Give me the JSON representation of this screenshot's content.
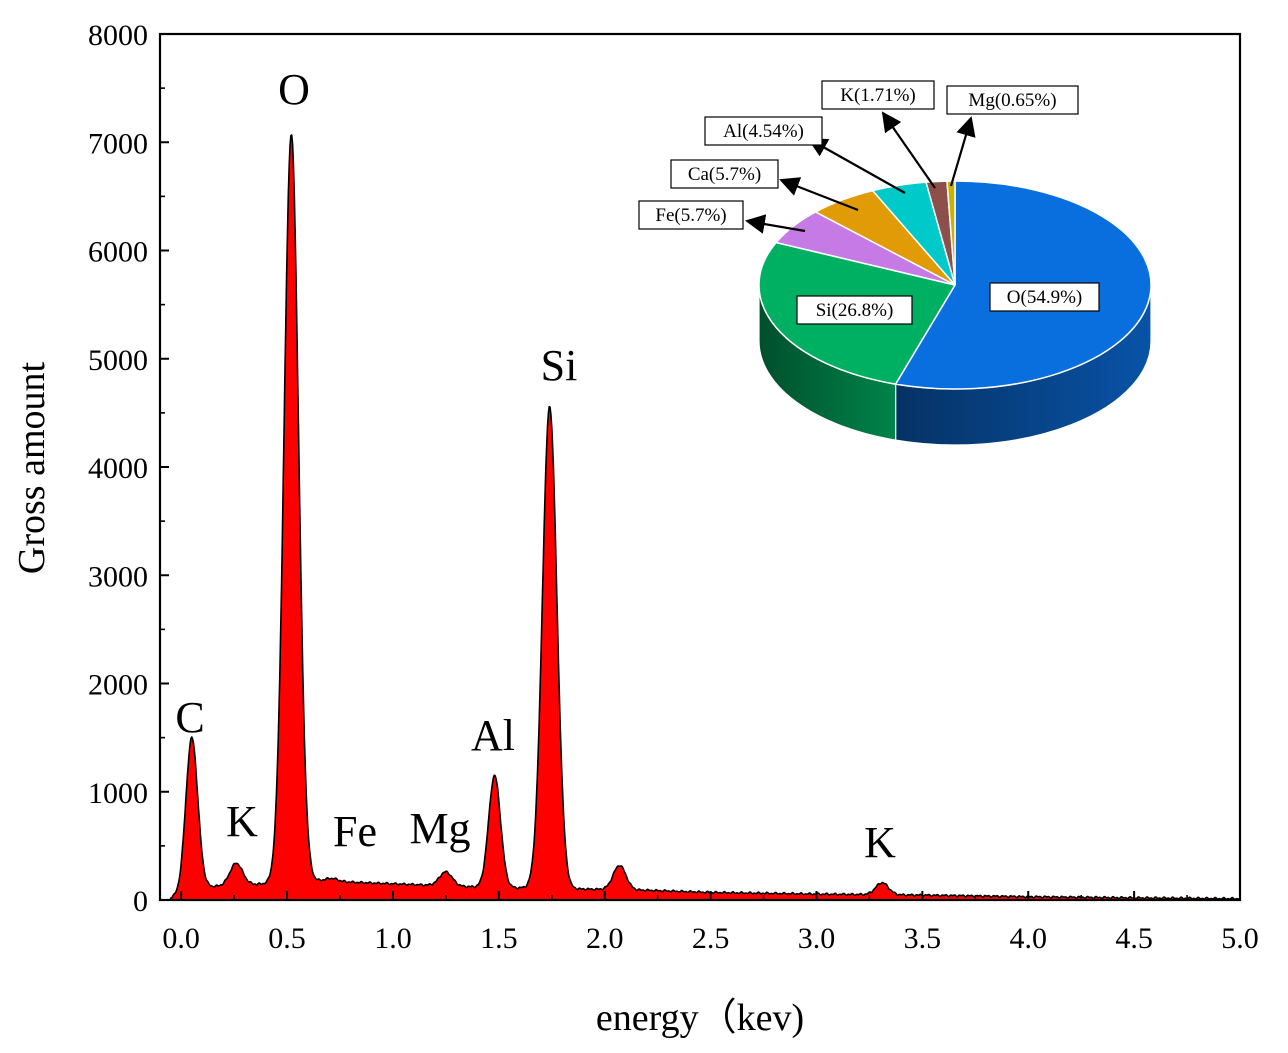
{
  "chart_data": [
    {
      "type": "area",
      "title": "",
      "xlabel": "energy（kev)",
      "ylabel": "Gross amount",
      "xlim": [
        -0.1,
        5.0
      ],
      "ylim": [
        0,
        8000
      ],
      "x_ticks": [
        "0.0",
        "0.5",
        "1.0",
        "1.5",
        "2.0",
        "2.5",
        "3.0",
        "3.5",
        "4.0",
        "4.5",
        "5.0"
      ],
      "y_ticks": [
        "0",
        "1000",
        "2000",
        "3000",
        "4000",
        "5000",
        "6000",
        "7000",
        "8000"
      ],
      "fill_color": "#ff0000",
      "baseline": [
        [
          -0.05,
          20
        ],
        [
          0.1,
          120
        ],
        [
          0.4,
          150
        ],
        [
          0.6,
          180
        ],
        [
          1.0,
          150
        ],
        [
          1.4,
          120
        ],
        [
          2.2,
          90
        ],
        [
          2.5,
          70
        ],
        [
          3.0,
          55
        ],
        [
          3.5,
          45
        ],
        [
          4.0,
          30
        ],
        [
          4.5,
          20
        ],
        [
          5.0,
          12
        ]
      ],
      "peaks": [
        {
          "label": "C",
          "x": 0.05,
          "y": 1500
        },
        {
          "label": "K",
          "x": 0.26,
          "y": 340
        },
        {
          "label": "O",
          "x": 0.52,
          "y": 7080
        },
        {
          "label": "Fe",
          "x": 0.71,
          "y": 200
        },
        {
          "label": "Mg",
          "x": 1.25,
          "y": 260
        },
        {
          "label": "Al",
          "x": 1.48,
          "y": 1150
        },
        {
          "label": "Si",
          "x": 1.74,
          "y": 4560
        },
        {
          "label": "",
          "x": 2.07,
          "y": 320
        },
        {
          "label": "K",
          "x": 3.31,
          "y": 160
        }
      ]
    },
    {
      "type": "pie",
      "title": "",
      "slices": [
        {
          "label": "O(54.9%)",
          "value": 54.9,
          "color": "#0a6fde"
        },
        {
          "label": "Si(26.8%)",
          "value": 26.8,
          "color": "#00b062"
        },
        {
          "label": "Fe(5.7%)",
          "value": 5.7,
          "color": "#c57ae5"
        },
        {
          "label": "Ca(5.7%)",
          "value": 5.7,
          "color": "#e09b06"
        },
        {
          "label": "Al(4.54%)",
          "value": 4.54,
          "color": "#00c9c9"
        },
        {
          "label": "K(1.71%)",
          "value": 1.71,
          "color": "#8c4f4a"
        },
        {
          "label": "Mg(0.65%)",
          "value": 0.65,
          "color": "#c8b400"
        }
      ]
    }
  ]
}
